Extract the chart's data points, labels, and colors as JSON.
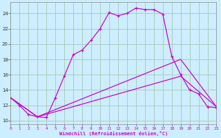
{
  "xlabel": "Windchill (Refroidissement éolien,°C)",
  "background_color": "#cceeff",
  "grid_color": "#aaccbb",
  "line_color": "#cc00cc",
  "xlim": [
    0,
    23
  ],
  "ylim": [
    9.5,
    25.5
  ],
  "yticks": [
    10,
    12,
    14,
    16,
    18,
    20,
    22,
    24
  ],
  "xticks": [
    0,
    1,
    2,
    3,
    4,
    5,
    6,
    7,
    8,
    9,
    10,
    11,
    12,
    13,
    14,
    15,
    16,
    17,
    18,
    19,
    20,
    21,
    22,
    23
  ],
  "curve1_x": [
    0,
    1,
    2,
    3,
    4,
    5,
    6,
    7,
    8,
    9,
    10,
    11,
    12,
    13,
    14,
    15,
    16,
    17,
    18,
    19,
    20,
    21,
    22,
    23
  ],
  "curve1_y": [
    13.0,
    12.0,
    10.8,
    10.5,
    10.4,
    13.0,
    15.8,
    18.6,
    19.2,
    20.5,
    22.0,
    24.1,
    23.7,
    24.0,
    24.7,
    24.5,
    24.5,
    23.9,
    18.4,
    16.0,
    14.0,
    13.5,
    11.8,
    11.7
  ],
  "curve2_x": [
    0,
    3,
    19,
    23
  ],
  "curve2_y": [
    13.0,
    10.5,
    18.0,
    11.8
  ],
  "curve3_x": [
    0,
    3,
    19,
    23
  ],
  "curve3_y": [
    13.0,
    10.5,
    15.8,
    11.8
  ]
}
